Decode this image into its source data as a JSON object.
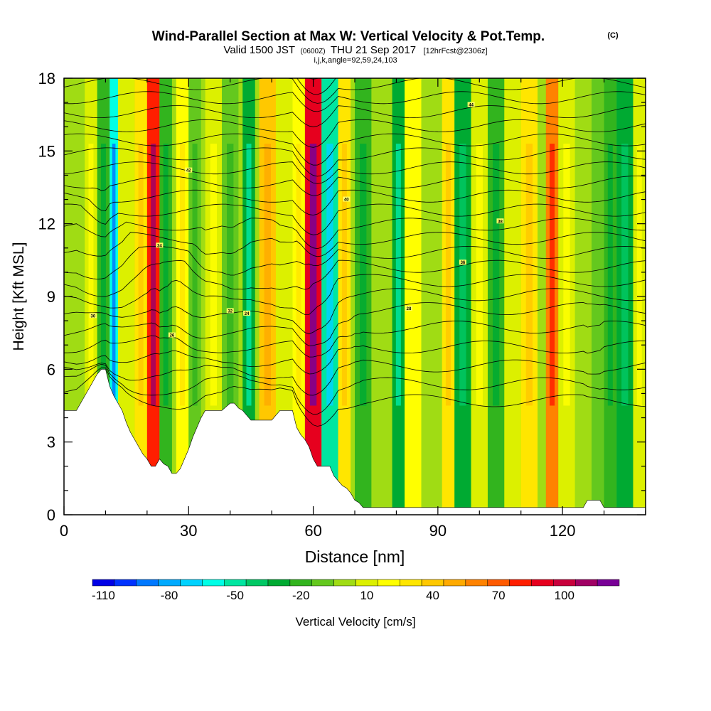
{
  "chart_data": {
    "type": "heatmap",
    "title": "Wind-Parallel Section at Max W: Vertical Velocity & Pot.Temp.",
    "title_mark": "(C)",
    "subtitle": {
      "valid": "Valid 1500 JST",
      "utc": "(0600Z)",
      "date": "THU 21 Sep 2017",
      "fcst": "[12hrFcst@2306z]"
    },
    "indices": "i,j,k,angle=92,59,24,103",
    "xlabel": "Distance [nm]",
    "ylabel": "Height [Kft MSL]",
    "xlim": [
      0,
      140
    ],
    "ylim": [
      0,
      18
    ],
    "x_ticks": [
      0,
      30,
      60,
      90,
      120
    ],
    "y_ticks": [
      0,
      3,
      6,
      9,
      12,
      15,
      18
    ],
    "colorbar": {
      "label": "Vertical Velocity [cm/s]",
      "ticks": [
        "-110",
        "-80",
        "-50",
        "-20",
        "10",
        "40",
        "70",
        "100"
      ],
      "levels": [
        -110,
        -100,
        -90,
        -80,
        -70,
        -60,
        -50,
        -40,
        -30,
        -20,
        -10,
        0,
        10,
        20,
        30,
        40,
        50,
        60,
        70,
        80,
        90,
        100,
        110,
        120
      ],
      "colors": [
        "#0000e6",
        "#0032ff",
        "#0078ff",
        "#00aaff",
        "#00d2ff",
        "#00ffe6",
        "#00e6a0",
        "#00c864",
        "#00aa32",
        "#32b41e",
        "#64c81e",
        "#a0dc14",
        "#dcf000",
        "#ffff00",
        "#ffe600",
        "#ffc800",
        "#ffaa00",
        "#ff8200",
        "#ff5a00",
        "#ff1e00",
        "#e6001e",
        "#c8003c",
        "#a00064",
        "#780096"
      ]
    },
    "terrain": [
      [
        0,
        4.3
      ],
      [
        3,
        4.3
      ],
      [
        4,
        4.6
      ],
      [
        5,
        4.9
      ],
      [
        6,
        5.2
      ],
      [
        7,
        5.5
      ],
      [
        8,
        5.8
      ],
      [
        9,
        6.0
      ],
      [
        10,
        6.0
      ],
      [
        11,
        5.3
      ],
      [
        12,
        4.9
      ],
      [
        13,
        4.6
      ],
      [
        14,
        4.3
      ],
      [
        15,
        3.8
      ],
      [
        16,
        3.4
      ],
      [
        17,
        3.1
      ],
      [
        18,
        2.8
      ],
      [
        19,
        2.5
      ],
      [
        20,
        2.3
      ],
      [
        21,
        2.0
      ],
      [
        22,
        2.0
      ],
      [
        23,
        2.3
      ],
      [
        24,
        2.1
      ],
      [
        25,
        2.0
      ],
      [
        26,
        1.7
      ],
      [
        27,
        1.7
      ],
      [
        28,
        1.9
      ],
      [
        29,
        2.3
      ],
      [
        30,
        2.7
      ],
      [
        31,
        3.2
      ],
      [
        32,
        3.6
      ],
      [
        33,
        4.0
      ],
      [
        34,
        4.3
      ],
      [
        38,
        4.3
      ],
      [
        40,
        4.6
      ],
      [
        41,
        4.6
      ],
      [
        42,
        4.4
      ],
      [
        43,
        4.3
      ],
      [
        44,
        4.1
      ],
      [
        45,
        3.9
      ],
      [
        50,
        3.9
      ],
      [
        52,
        4.3
      ],
      [
        55,
        4.3
      ],
      [
        56,
        3.6
      ],
      [
        57,
        3.3
      ],
      [
        58,
        3.1
      ],
      [
        59,
        2.8
      ],
      [
        60,
        2.3
      ],
      [
        61,
        2.0
      ],
      [
        64,
        2.0
      ],
      [
        65,
        1.6
      ],
      [
        66,
        1.4
      ],
      [
        67,
        1.2
      ],
      [
        68,
        1.1
      ],
      [
        69,
        0.9
      ],
      [
        70,
        0.6
      ],
      [
        71,
        0.5
      ],
      [
        72,
        0.3
      ],
      [
        125,
        0.3
      ],
      [
        126,
        0.6
      ],
      [
        129,
        0.6
      ],
      [
        130,
        0.3
      ],
      [
        140,
        0.3
      ]
    ],
    "velocity_cells": [
      {
        "x": 5,
        "w": 3,
        "v": 15
      },
      {
        "x": 8,
        "w": 3,
        "v": -15
      },
      {
        "x": 11,
        "w": 2,
        "v": -60
      },
      {
        "x": 13,
        "w": 4,
        "v": 10
      },
      {
        "x": 17,
        "w": 3,
        "v": 30
      },
      {
        "x": 20,
        "w": 3,
        "v": 85
      },
      {
        "x": 23,
        "w": 3,
        "v": -20
      },
      {
        "x": 27,
        "w": 3,
        "v": 25
      },
      {
        "x": 30,
        "w": 3,
        "v": -10
      },
      {
        "x": 34,
        "w": 4,
        "v": 15
      },
      {
        "x": 38,
        "w": 4,
        "v": -10
      },
      {
        "x": 43,
        "w": 3,
        "v": -30
      },
      {
        "x": 47,
        "w": 4,
        "v": 40
      },
      {
        "x": 51,
        "w": 4,
        "v": 10
      },
      {
        "x": 55,
        "w": 3,
        "v": 25
      },
      {
        "x": 58,
        "w": 4,
        "v": 95
      },
      {
        "x": 62,
        "w": 4,
        "v": -45
      },
      {
        "x": 66,
        "w": 3,
        "v": 30
      },
      {
        "x": 70,
        "w": 4,
        "v": -20
      },
      {
        "x": 75,
        "w": 4,
        "v": 5
      },
      {
        "x": 79,
        "w": 3,
        "v": -30
      },
      {
        "x": 82,
        "w": 4,
        "v": 20
      },
      {
        "x": 87,
        "w": 3,
        "v": 5
      },
      {
        "x": 91,
        "w": 3,
        "v": 35
      },
      {
        "x": 94,
        "w": 4,
        "v": -25
      },
      {
        "x": 98,
        "w": 4,
        "v": 15
      },
      {
        "x": 102,
        "w": 4,
        "v": -20
      },
      {
        "x": 106,
        "w": 4,
        "v": 10
      },
      {
        "x": 110,
        "w": 4,
        "v": 35
      },
      {
        "x": 116,
        "w": 3,
        "v": 60
      },
      {
        "x": 119,
        "w": 4,
        "v": 15
      },
      {
        "x": 123,
        "w": 4,
        "v": 5
      },
      {
        "x": 127,
        "w": 3,
        "v": -5
      },
      {
        "x": 130,
        "w": 3,
        "v": -15
      },
      {
        "x": 133,
        "w": 4,
        "v": -25
      },
      {
        "x": 137,
        "w": 3,
        "v": 15
      }
    ],
    "isentrope_labels": [
      "44",
      "42",
      "40",
      "38",
      "36",
      "34",
      "32",
      "30",
      "28",
      "26",
      "24"
    ]
  }
}
